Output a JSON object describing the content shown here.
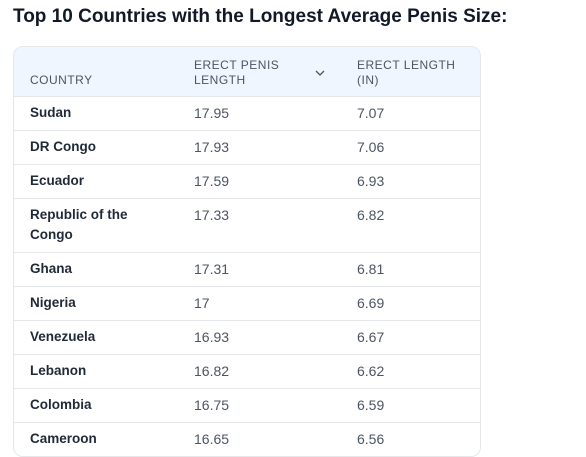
{
  "title": "Top 10 Countries with the Longest Average Penis Size:",
  "table": {
    "headers": [
      "COUNTRY",
      "ERECT PENIS LENGTH",
      "ERECT LENGTH (IN)"
    ],
    "rows": [
      [
        "Sudan",
        17.95,
        7.07
      ],
      [
        "DR Congo",
        17.93,
        7.06
      ],
      [
        "Ecuador",
        17.59,
        6.93
      ],
      [
        "Republic of the Congo",
        17.33,
        6.82
      ],
      [
        "Ghana",
        17.31,
        6.81
      ],
      [
        "Nigeria",
        17,
        6.69
      ],
      [
        "Venezuela",
        16.93,
        6.67
      ],
      [
        "Lebanon",
        16.82,
        6.62
      ],
      [
        "Colombia",
        16.75,
        6.59
      ],
      [
        "Cameroon",
        16.65,
        6.56
      ]
    ]
  }
}
